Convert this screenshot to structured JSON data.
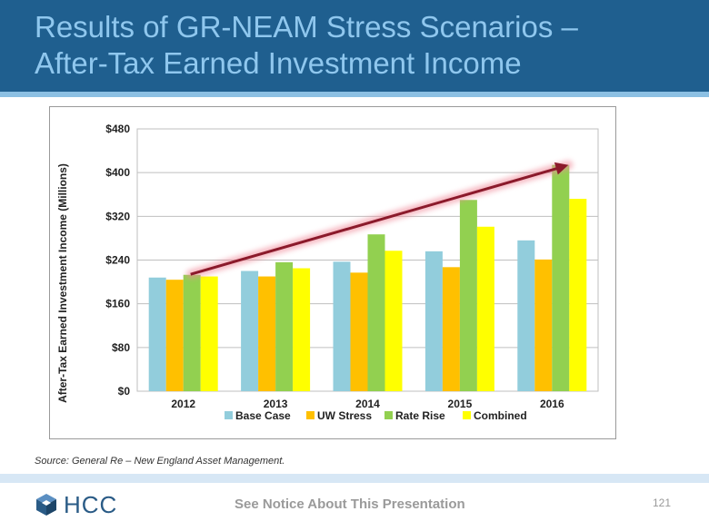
{
  "header": {
    "title_line1": "Results of GR-NEAM Stress Scenarios –",
    "title_line2": "After-Tax Earned Investment Income"
  },
  "chart_data": {
    "type": "bar",
    "categories": [
      "2012",
      "2013",
      "2014",
      "2015",
      "2016"
    ],
    "series": [
      {
        "name": "Base Case",
        "color": "#92cddc",
        "values": [
          208,
          220,
          237,
          256,
          276
        ]
      },
      {
        "name": "UW Stress",
        "color": "#ffc000",
        "values": [
          204,
          210,
          217,
          227,
          241
        ]
      },
      {
        "name": "Rate Rise",
        "color": "#92d050",
        "values": [
          213,
          236,
          287,
          350,
          414
        ]
      },
      {
        "name": "Combined",
        "color": "#ffff00",
        "values": [
          210,
          225,
          257,
          301,
          352
        ]
      }
    ],
    "ylabel": "After-Tax Earned Investment Income (Millions)",
    "ylim": [
      0,
      480
    ],
    "yticks": [
      "$0",
      "$80",
      "$160",
      "$240",
      "$320",
      "$400",
      "$480"
    ],
    "ytick_values": [
      0,
      80,
      160,
      240,
      320,
      400,
      480
    ],
    "grid": true,
    "legend_position": "bottom",
    "annotation": {
      "type": "trend-arrow",
      "from": {
        "category": "2012",
        "value": 214
      },
      "to": {
        "category": "2016",
        "value": 414
      },
      "color": "#8b1a2b"
    }
  },
  "source": "Source: General Re – New England Asset Management.",
  "footer": {
    "logo_text": "HCC",
    "notice": "See Notice About This Presentation",
    "page_number": "121"
  }
}
